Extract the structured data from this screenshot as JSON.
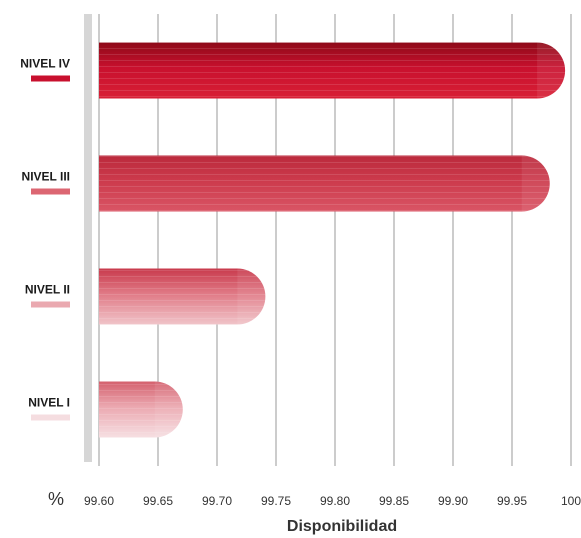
{
  "chart_data": {
    "type": "bar",
    "orientation": "horizontal",
    "categories": [
      "NIVEL IV",
      "NIVEL III",
      "NIVEL II",
      "NIVEL I"
    ],
    "values": [
      99.995,
      99.982,
      99.741,
      99.671
    ],
    "xlabel": "Disponibilidad",
    "x_unit_label": "%",
    "xlim": [
      99.6,
      100
    ],
    "xticks": [
      "99.60",
      "99.65",
      "99.70",
      "99.75",
      "99.80",
      "99.85",
      "99.90",
      "99.95",
      "100"
    ],
    "grid": true,
    "colors": [
      "#c8102e",
      "#cc2f44",
      "#dc6672",
      "#e8a6ae"
    ],
    "swatch_colors": [
      "#c8102e",
      "#dc6672",
      "#eaa9b0",
      "#f5dde0"
    ]
  }
}
